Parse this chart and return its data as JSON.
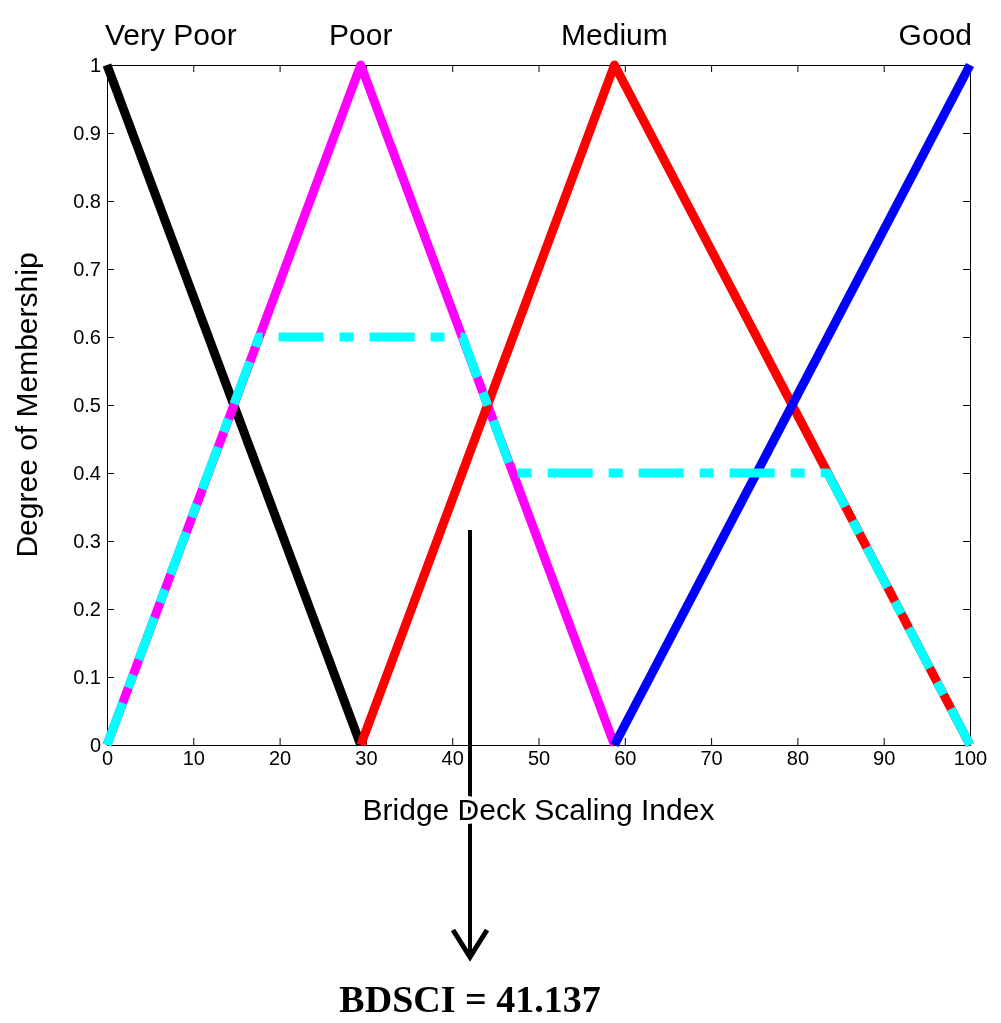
{
  "chart_data": {
    "type": "line",
    "xlabel": "Bridge Deck Scaling Index",
    "ylabel": "Degree of Membership",
    "xlim": [
      0,
      100
    ],
    "ylim": [
      0,
      1
    ],
    "xticks": [
      0,
      10,
      20,
      30,
      40,
      50,
      60,
      70,
      80,
      90,
      100
    ],
    "yticks": [
      0,
      0.1,
      0.2,
      0.3,
      0.4,
      0.5,
      0.6,
      0.7,
      0.8,
      0.9,
      1
    ],
    "grid": false,
    "legend": false,
    "marker": "none",
    "series": [
      {
        "name": "Very Poor",
        "color": "#000000",
        "x": [
          0,
          29.4
        ],
        "values": [
          1,
          0
        ]
      },
      {
        "name": "Poor",
        "color": "#ff00ff",
        "x": [
          0,
          29.4,
          58.8
        ],
        "values": [
          0,
          1,
          0
        ]
      },
      {
        "name": "Medium",
        "color": "#ff0000",
        "x": [
          29.4,
          58.8,
          100
        ],
        "values": [
          0,
          1,
          0
        ]
      },
      {
        "name": "Good",
        "color": "#0000ff",
        "x": [
          58.8,
          100
        ],
        "values": [
          0,
          1
        ]
      },
      {
        "color": "#00ffff",
        "line_style": "dashed",
        "x": [
          0,
          17.6,
          41.2,
          47.0,
          83.5,
          100
        ],
        "values": [
          0,
          0.6,
          0.6,
          0.4,
          0.4,
          0
        ]
      }
    ],
    "annotations": [
      "BDSCI = 41.137"
    ]
  }
}
